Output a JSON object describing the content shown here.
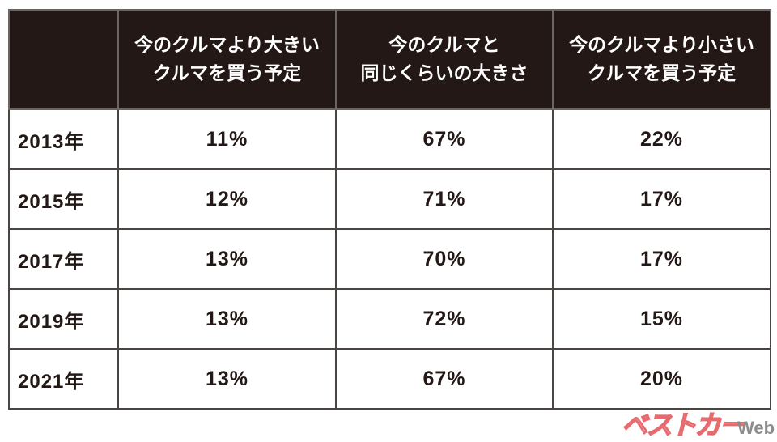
{
  "table": {
    "headers": [
      {
        "line1": "",
        "line2": ""
      },
      {
        "line1": "今のクルマより大きい",
        "line2": "クルマを買う予定"
      },
      {
        "line1": "今のクルマと",
        "line2": "同じくらいの大きさ"
      },
      {
        "line1": "今のクルマより小さい",
        "line2": "クルマを買う予定"
      }
    ],
    "rows": [
      {
        "year": "2013年",
        "larger": "11%",
        "same": "67%",
        "smaller": "22%"
      },
      {
        "year": "2015年",
        "larger": "12%",
        "same": "71%",
        "smaller": "17%"
      },
      {
        "year": "2017年",
        "larger": "13%",
        "same": "70%",
        "smaller": "17%"
      },
      {
        "year": "2019年",
        "larger": "13%",
        "same": "72%",
        "smaller": "15%"
      },
      {
        "year": "2021年",
        "larger": "13%",
        "same": "67%",
        "smaller": "20%"
      }
    ]
  },
  "watermark": {
    "brand": "ベストカー",
    "suffix": "Web"
  },
  "colors": {
    "header_bg": "#231815",
    "header_text": "#ffffff",
    "border": "#4a4442",
    "watermark": "#e56b6f"
  },
  "chart_data": {
    "type": "table",
    "title": "",
    "columns": [
      "",
      "今のクルマより大きいクルマを買う予定",
      "今のクルマと同じくらいの大きさ",
      "今のクルマより小さいクルマを買う予定"
    ],
    "categories": [
      "2013年",
      "2015年",
      "2017年",
      "2019年",
      "2021年"
    ],
    "series": [
      {
        "name": "今のクルマより大きいクルマを買う予定",
        "values": [
          11,
          12,
          13,
          13,
          13
        ]
      },
      {
        "name": "今のクルマと同じくらいの大きさ",
        "values": [
          67,
          71,
          70,
          72,
          67
        ]
      },
      {
        "name": "今のクルマより小さいクルマを買う予定",
        "values": [
          22,
          17,
          17,
          15,
          20
        ]
      }
    ],
    "unit": "%"
  }
}
